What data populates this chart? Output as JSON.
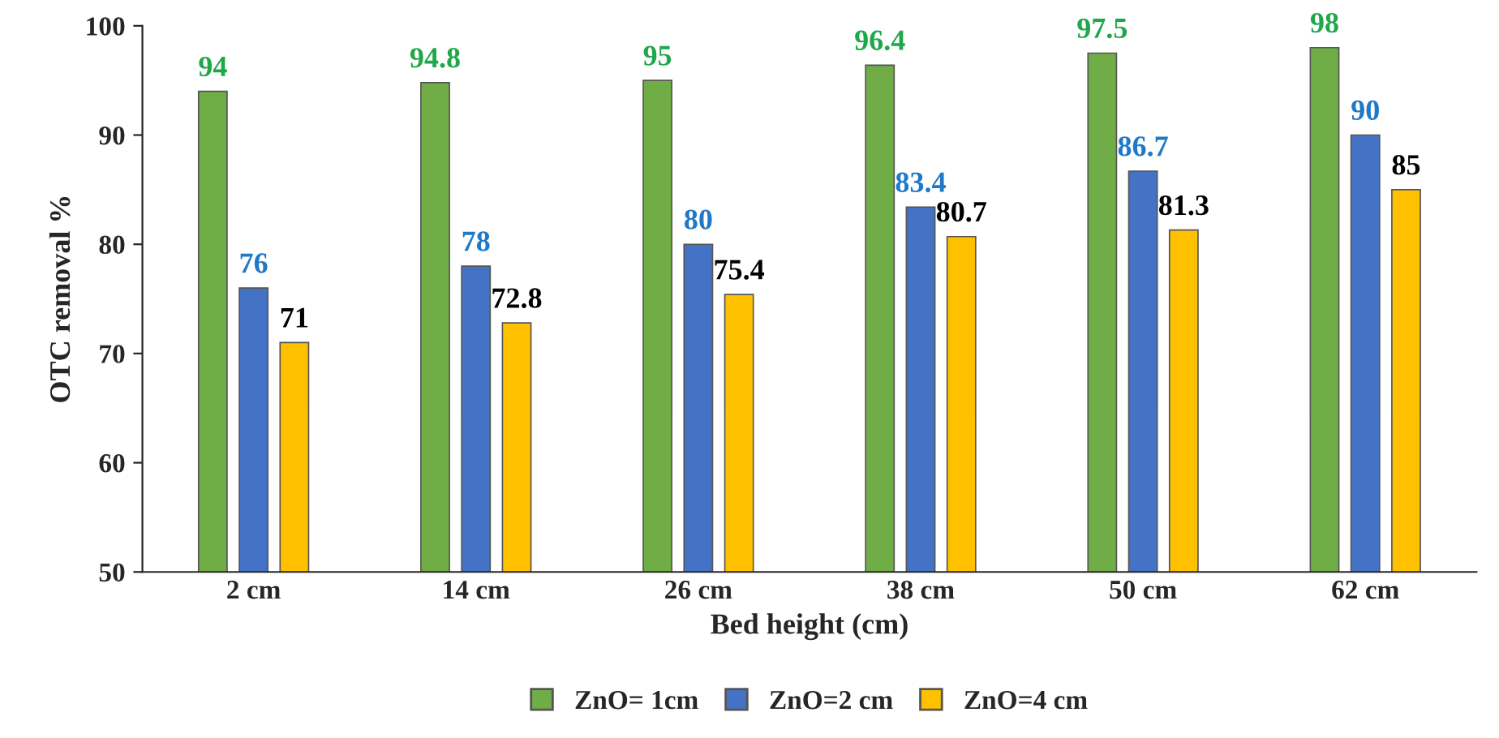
{
  "chart_data": {
    "type": "bar",
    "xlabel": "Bed height (cm)",
    "ylabel": "OTC removal %",
    "categories": [
      "2 cm",
      "14 cm",
      "26 cm",
      "38 cm",
      "50 cm",
      "62 cm"
    ],
    "series": [
      {
        "name": "ZnO= 1cm",
        "color": "#70ad47",
        "values": [
          94,
          94.8,
          95,
          96.4,
          97.5,
          98
        ]
      },
      {
        "name": "ZnO=2 cm",
        "color": "#4472c4",
        "values": [
          76,
          78,
          80,
          83.4,
          86.7,
          90
        ]
      },
      {
        "name": "ZnO=4 cm",
        "color": "#ffc000",
        "values": [
          71,
          72.8,
          75.4,
          80.7,
          81.3,
          85
        ]
      }
    ],
    "ylim": [
      50,
      100
    ],
    "yticks": [
      50,
      60,
      70,
      80,
      90,
      100
    ],
    "data_labels": true,
    "grid": false,
    "legend": "bottom"
  }
}
